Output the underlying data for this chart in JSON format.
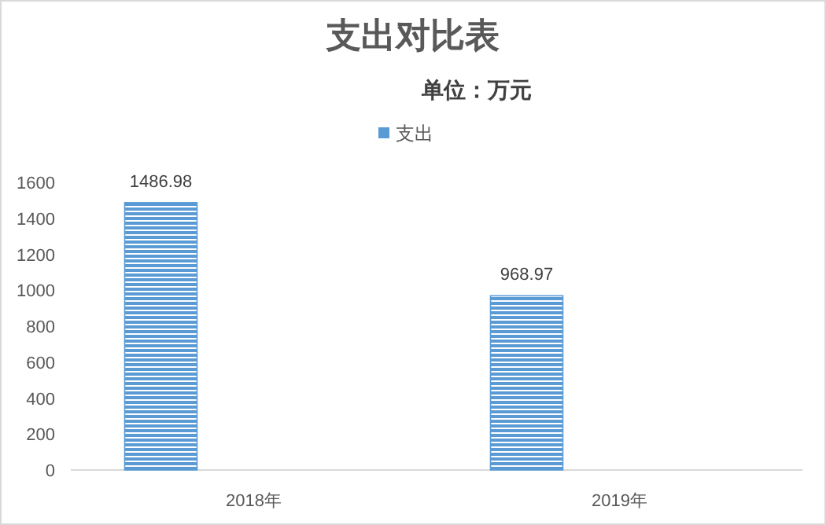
{
  "chart_data": {
    "type": "bar",
    "title": "支出对比表",
    "subtitle": "单位：万元",
    "categories": [
      "2018年",
      "2019年"
    ],
    "series": [
      {
        "name": "支出",
        "color": "#5b9bd5",
        "values": [
          1486.98,
          968.97
        ]
      }
    ],
    "ylim": [
      0,
      1600
    ],
    "yticks": [
      0,
      200,
      400,
      600,
      800,
      1000,
      1200,
      1400,
      1600
    ],
    "data_labels": true,
    "legend": "top",
    "grid": false
  }
}
